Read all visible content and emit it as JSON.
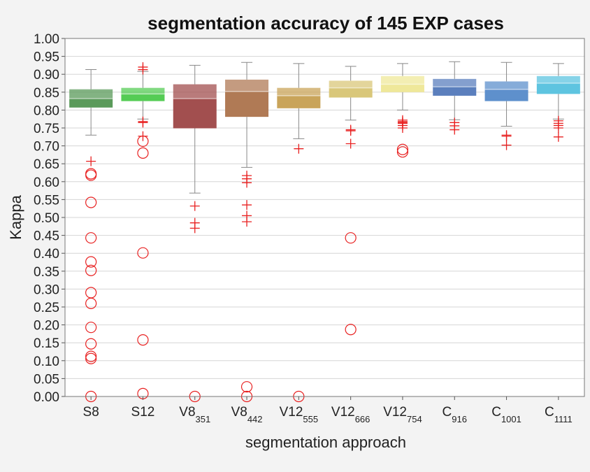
{
  "chart_data": {
    "type": "box",
    "title": "segmentation accuracy of 145 EXP cases",
    "xlabel": "segmentation approach",
    "ylabel": "Kappa",
    "ylim": [
      0,
      1
    ],
    "yticks": [
      "0.00",
      "0.05",
      "0.10",
      "0.15",
      "0.20",
      "0.25",
      "0.30",
      "0.35",
      "0.40",
      "0.45",
      "0.50",
      "0.55",
      "0.60",
      "0.65",
      "0.70",
      "0.75",
      "0.80",
      "0.85",
      "0.90",
      "0.95",
      "1.00"
    ],
    "grid": true,
    "categories": [
      {
        "base": "S8",
        "sub": ""
      },
      {
        "base": "S12",
        "sub": ""
      },
      {
        "base": "V8",
        "sub": "351"
      },
      {
        "base": "V8",
        "sub": "442"
      },
      {
        "base": "V12",
        "sub": "555"
      },
      {
        "base": "V12",
        "sub": "666"
      },
      {
        "base": "V12",
        "sub": "754"
      },
      {
        "base": "C",
        "sub": "916"
      },
      {
        "base": "C",
        "sub": "1001"
      },
      {
        "base": "C",
        "sub": "1111"
      }
    ],
    "boxes": [
      {
        "whisker_low": 0.73,
        "q1": 0.807,
        "median": 0.832,
        "q3": 0.858,
        "whisker_high": 0.913,
        "color": "#5a9a5a",
        "outliers_plus": [
          0.657
        ],
        "outliers_circle": [
          0.622,
          0.618,
          0.542,
          0.443,
          0.376,
          0.352,
          0.29,
          0.26,
          0.193,
          0.147,
          0.112,
          0.106,
          0.0
        ]
      },
      {
        "whisker_low": 0.775,
        "q1": 0.825,
        "median": 0.845,
        "q3": 0.862,
        "whisker_high": 0.908,
        "color": "#55cc55",
        "outliers_plus": [
          0.92,
          0.913,
          0.768,
          0.765,
          0.727
        ],
        "outliers_circle": [
          0.713,
          0.68,
          0.401,
          0.158,
          0.008
        ]
      },
      {
        "whisker_low": 0.568,
        "q1": 0.749,
        "median": 0.832,
        "q3": 0.872,
        "whisker_high": 0.925,
        "color": "#a24f4f",
        "outliers_plus": [
          0.532,
          0.485,
          0.47
        ],
        "outliers_circle": [
          0.0
        ]
      },
      {
        "whisker_low": 0.64,
        "q1": 0.781,
        "median": 0.852,
        "q3": 0.885,
        "whisker_high": 0.933,
        "color": "#b07a55",
        "outliers_plus": [
          0.617,
          0.608,
          0.597,
          0.535,
          0.505,
          0.488
        ],
        "outliers_circle": [
          0.027,
          0.0
        ]
      },
      {
        "whisker_low": 0.72,
        "q1": 0.805,
        "median": 0.84,
        "q3": 0.862,
        "whisker_high": 0.93,
        "color": "#c9a45a",
        "outliers_plus": [
          0.692
        ],
        "outliers_circle": [
          0.0
        ]
      },
      {
        "whisker_low": 0.772,
        "q1": 0.835,
        "median": 0.862,
        "q3": 0.882,
        "whisker_high": 0.922,
        "color": "#d9c77a",
        "outliers_plus": [
          0.745,
          0.742,
          0.706
        ],
        "outliers_circle": [
          0.443,
          0.187
        ]
      },
      {
        "whisker_low": 0.8,
        "q1": 0.85,
        "median": 0.872,
        "q3": 0.895,
        "whisker_high": 0.93,
        "color": "#efe89a",
        "outliers_plus": [
          0.772,
          0.768,
          0.765,
          0.763,
          0.757,
          0.75
        ],
        "outliers_circle": [
          0.69,
          0.683
        ]
      },
      {
        "whisker_low": 0.773,
        "q1": 0.84,
        "median": 0.865,
        "q3": 0.887,
        "whisker_high": 0.935,
        "color": "#5b7fbd",
        "outliers_plus": [
          0.765,
          0.756,
          0.745
        ],
        "outliers_circle": []
      },
      {
        "whisker_low": 0.755,
        "q1": 0.825,
        "median": 0.858,
        "q3": 0.88,
        "whisker_high": 0.933,
        "color": "#5e90cc",
        "outliers_plus": [
          0.73,
          0.727,
          0.702
        ],
        "outliers_circle": []
      },
      {
        "whisker_low": 0.775,
        "q1": 0.845,
        "median": 0.875,
        "q3": 0.895,
        "whisker_high": 0.93,
        "color": "#5ec4e0",
        "outliers_plus": [
          0.77,
          0.763,
          0.757,
          0.75,
          0.725
        ],
        "outliers_circle": []
      }
    ]
  },
  "colors": {
    "outlier": "#e82020",
    "whisker": "#888888",
    "grid": "#d6d6d6",
    "background": "#f3f3f3",
    "plot_bg": "#ffffff"
  }
}
